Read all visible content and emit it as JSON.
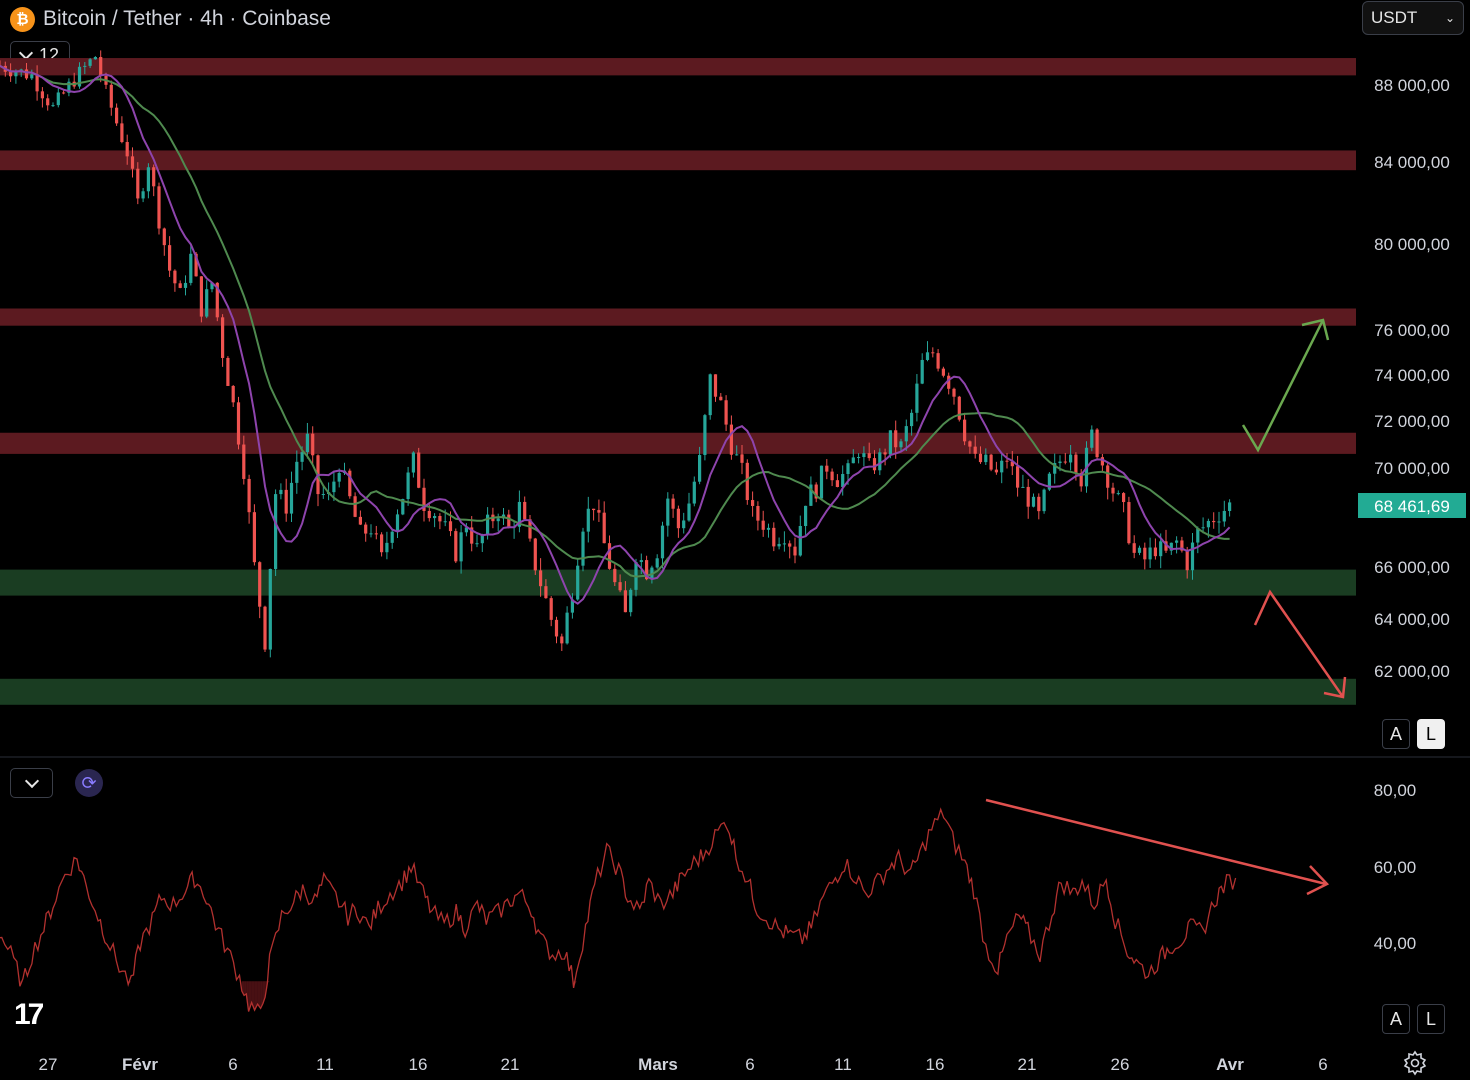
{
  "header": {
    "coin_symbol": "₿",
    "title": "Bitcoin / Tether · 4h · Coinbase",
    "quote_currency": "USDT",
    "indicator_count": "12"
  },
  "price_scale": {
    "labels": [
      "88 000,00",
      "84 000,00",
      "80 000,00",
      "76 000,00",
      "74 000,00",
      "72 000,00",
      "70 000,00",
      "66 000,00",
      "64 000,00",
      "62 000,00"
    ],
    "current_price": "68 461,69",
    "current_price_color": "#22ab94",
    "auto_button": "A",
    "log_button": "L"
  },
  "rsi_scale": {
    "labels": [
      "80,00",
      "60,00",
      "40,00"
    ],
    "auto_button": "A",
    "log_button": "L"
  },
  "time_axis": {
    "labels": [
      "27",
      "Févr",
      "6",
      "11",
      "16",
      "21",
      "Mars",
      "6",
      "11",
      "16",
      "21",
      "26",
      "Avr",
      "6"
    ],
    "bold": [
      "Févr",
      "Mars",
      "Avr"
    ]
  },
  "chart_data": [
    {
      "type": "candlestick",
      "symbol": "BTC/USDT",
      "timeframe": "4h",
      "exchange": "Coinbase",
      "ylim": [
        60500,
        90500
      ],
      "zones": [
        {
          "kind": "resistance",
          "low": 88500,
          "high": 89400,
          "color": "#5c1a20"
        },
        {
          "kind": "resistance",
          "low": 83600,
          "high": 84600,
          "color": "#5c1a20"
        },
        {
          "kind": "resistance",
          "low": 76200,
          "high": 77000,
          "color": "#5c1a20"
        },
        {
          "kind": "resistance",
          "low": 70600,
          "high": 71500,
          "color": "#5c1a20"
        },
        {
          "kind": "support",
          "low": 64900,
          "high": 65900,
          "color": "#1a3d22"
        },
        {
          "kind": "support",
          "low": 60700,
          "high": 61700,
          "color": "#1a3d22"
        }
      ],
      "price_path": [
        [
          0,
          89000
        ],
        [
          3,
          88500
        ],
        [
          5,
          86800
        ],
        [
          7,
          88300
        ],
        [
          9,
          89500
        ],
        [
          10,
          87600
        ],
        [
          12,
          84500
        ],
        [
          13,
          82000
        ],
        [
          14,
          84000
        ],
        [
          15,
          81200
        ],
        [
          16,
          78800
        ],
        [
          17,
          77600
        ],
        [
          18,
          79400
        ],
        [
          19,
          77000
        ],
        [
          20,
          78200
        ],
        [
          21,
          75000
        ],
        [
          22,
          72700
        ],
        [
          23,
          70000
        ],
        [
          24,
          66000
        ],
        [
          25,
          63200
        ],
        [
          26,
          69000
        ],
        [
          27,
          68500
        ],
        [
          28,
          70300
        ],
        [
          29,
          71200
        ],
        [
          30,
          69000
        ],
        [
          31,
          68800
        ],
        [
          32,
          70200
        ],
        [
          33,
          68700
        ],
        [
          34,
          67300
        ],
        [
          35,
          67600
        ],
        [
          36,
          66300
        ],
        [
          37,
          67800
        ],
        [
          38,
          68900
        ],
        [
          39,
          70300
        ],
        [
          40,
          68600
        ],
        [
          41,
          68200
        ],
        [
          42,
          67500
        ],
        [
          43,
          66600
        ],
        [
          44,
          67800
        ],
        [
          45,
          66700
        ],
        [
          46,
          67700
        ],
        [
          47,
          68300
        ],
        [
          48,
          67500
        ],
        [
          49,
          68400
        ],
        [
          50,
          66800
        ],
        [
          51,
          65400
        ],
        [
          52,
          64000
        ],
        [
          53,
          63000
        ],
        [
          54,
          65200
        ],
        [
          55,
          67800
        ],
        [
          56,
          68600
        ],
        [
          57,
          66900
        ],
        [
          58,
          65300
        ],
        [
          59,
          64100
        ],
        [
          60,
          66600
        ],
        [
          61,
          65900
        ],
        [
          62,
          66700
        ],
        [
          63,
          68800
        ],
        [
          64,
          67600
        ],
        [
          65,
          68600
        ],
        [
          66,
          70300
        ],
        [
          67,
          73800
        ],
        [
          68,
          72700
        ],
        [
          69,
          71000
        ],
        [
          70,
          69800
        ],
        [
          71,
          68100
        ],
        [
          72,
          67800
        ],
        [
          73,
          67200
        ],
        [
          74,
          67400
        ],
        [
          75,
          66700
        ],
        [
          76,
          68800
        ],
        [
          77,
          69200
        ],
        [
          78,
          70100
        ],
        [
          79,
          69600
        ],
        [
          80,
          69800
        ],
        [
          81,
          70800
        ],
        [
          82,
          70000
        ],
        [
          83,
          70400
        ],
        [
          84,
          71200
        ],
        [
          85,
          70900
        ],
        [
          86,
          72300
        ],
        [
          87,
          74500
        ],
        [
          88,
          75000
        ],
        [
          89,
          74200
        ],
        [
          90,
          73200
        ],
        [
          91,
          71500
        ],
        [
          92,
          70300
        ],
        [
          93,
          70200
        ],
        [
          94,
          69700
        ],
        [
          95,
          70400
        ],
        [
          96,
          69300
        ],
        [
          97,
          68800
        ],
        [
          98,
          68000
        ],
        [
          99,
          69500
        ],
        [
          100,
          70300
        ],
        [
          101,
          70900
        ],
        [
          102,
          69600
        ],
        [
          103,
          71400
        ],
        [
          104,
          70200
        ],
        [
          105,
          69100
        ],
        [
          106,
          68200
        ],
        [
          107,
          66500
        ],
        [
          108,
          66300
        ],
        [
          109,
          66800
        ],
        [
          110,
          66500
        ],
        [
          111,
          67000
        ],
        [
          112,
          66200
        ],
        [
          113,
          67400
        ],
        [
          114,
          67800
        ],
        [
          115,
          68200
        ],
        [
          116,
          68500
        ]
      ],
      "ma_fast_color": "#8e44ad",
      "ma_slow_color": "#4f8a4f",
      "annotations": [
        {
          "kind": "arrow-up",
          "color": "#6aa84f"
        },
        {
          "kind": "arrow-down",
          "color": "#e0514f"
        }
      ]
    },
    {
      "type": "line",
      "name": "RSI",
      "ylim": [
        20,
        90
      ],
      "color": "#b2312f",
      "values": [
        43,
        37,
        29,
        37,
        44,
        50,
        58,
        62,
        55,
        47,
        41,
        34,
        29,
        40,
        46,
        52,
        50,
        54,
        57,
        52,
        45,
        38,
        31,
        24,
        21,
        35,
        47,
        51,
        54,
        51,
        56,
        52,
        47,
        49,
        44,
        49,
        53,
        56,
        60,
        53,
        48,
        45,
        48,
        44,
        50,
        46,
        48,
        51,
        53,
        49,
        41,
        37,
        38,
        30,
        44,
        55,
        64,
        59,
        52,
        48,
        56,
        50,
        53,
        57,
        61,
        63,
        68,
        72,
        63,
        56,
        49,
        46,
        43,
        42,
        41,
        44,
        52,
        57,
        61,
        57,
        53,
        56,
        60,
        62,
        58,
        63,
        70,
        74,
        67,
        61,
        54,
        39,
        33,
        41,
        47,
        43,
        37,
        48,
        56,
        53,
        56,
        50,
        57,
        46,
        38,
        35,
        32,
        36,
        39,
        41,
        44,
        43,
        51,
        55,
        57
      ]
    }
  ],
  "rsi_trendline": {
    "color": "#e0514f"
  }
}
